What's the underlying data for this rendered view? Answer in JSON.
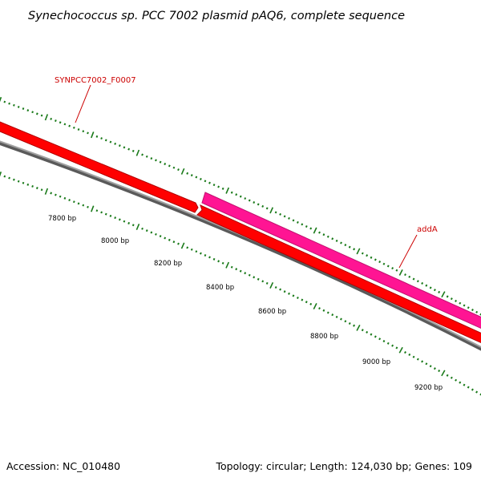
{
  "title": "Synechococcus sp. PCC 7002 plasmid pAQ6, complete sequence",
  "footer": {
    "accession": "Accession: NC_010480",
    "summary": "Topology: circular; Length: 124,030 bp; Genes: 109"
  },
  "colors": {
    "backbone": "#808080",
    "reverse_gene": "#ff0000",
    "forward_gene": "#ff1493",
    "ticks": "#1a7a1a",
    "gene_label": "#cc0000"
  },
  "genes": [
    {
      "name": "SYNPCC7002_F0007",
      "strand": "reverse"
    },
    {
      "name": "addA",
      "strand": "forward"
    }
  ],
  "tick_labels": [
    "7800 bp",
    "8000 bp",
    "8200 bp",
    "8400 bp",
    "8600 bp",
    "8800 bp",
    "9000 bp",
    "9200 bp"
  ]
}
